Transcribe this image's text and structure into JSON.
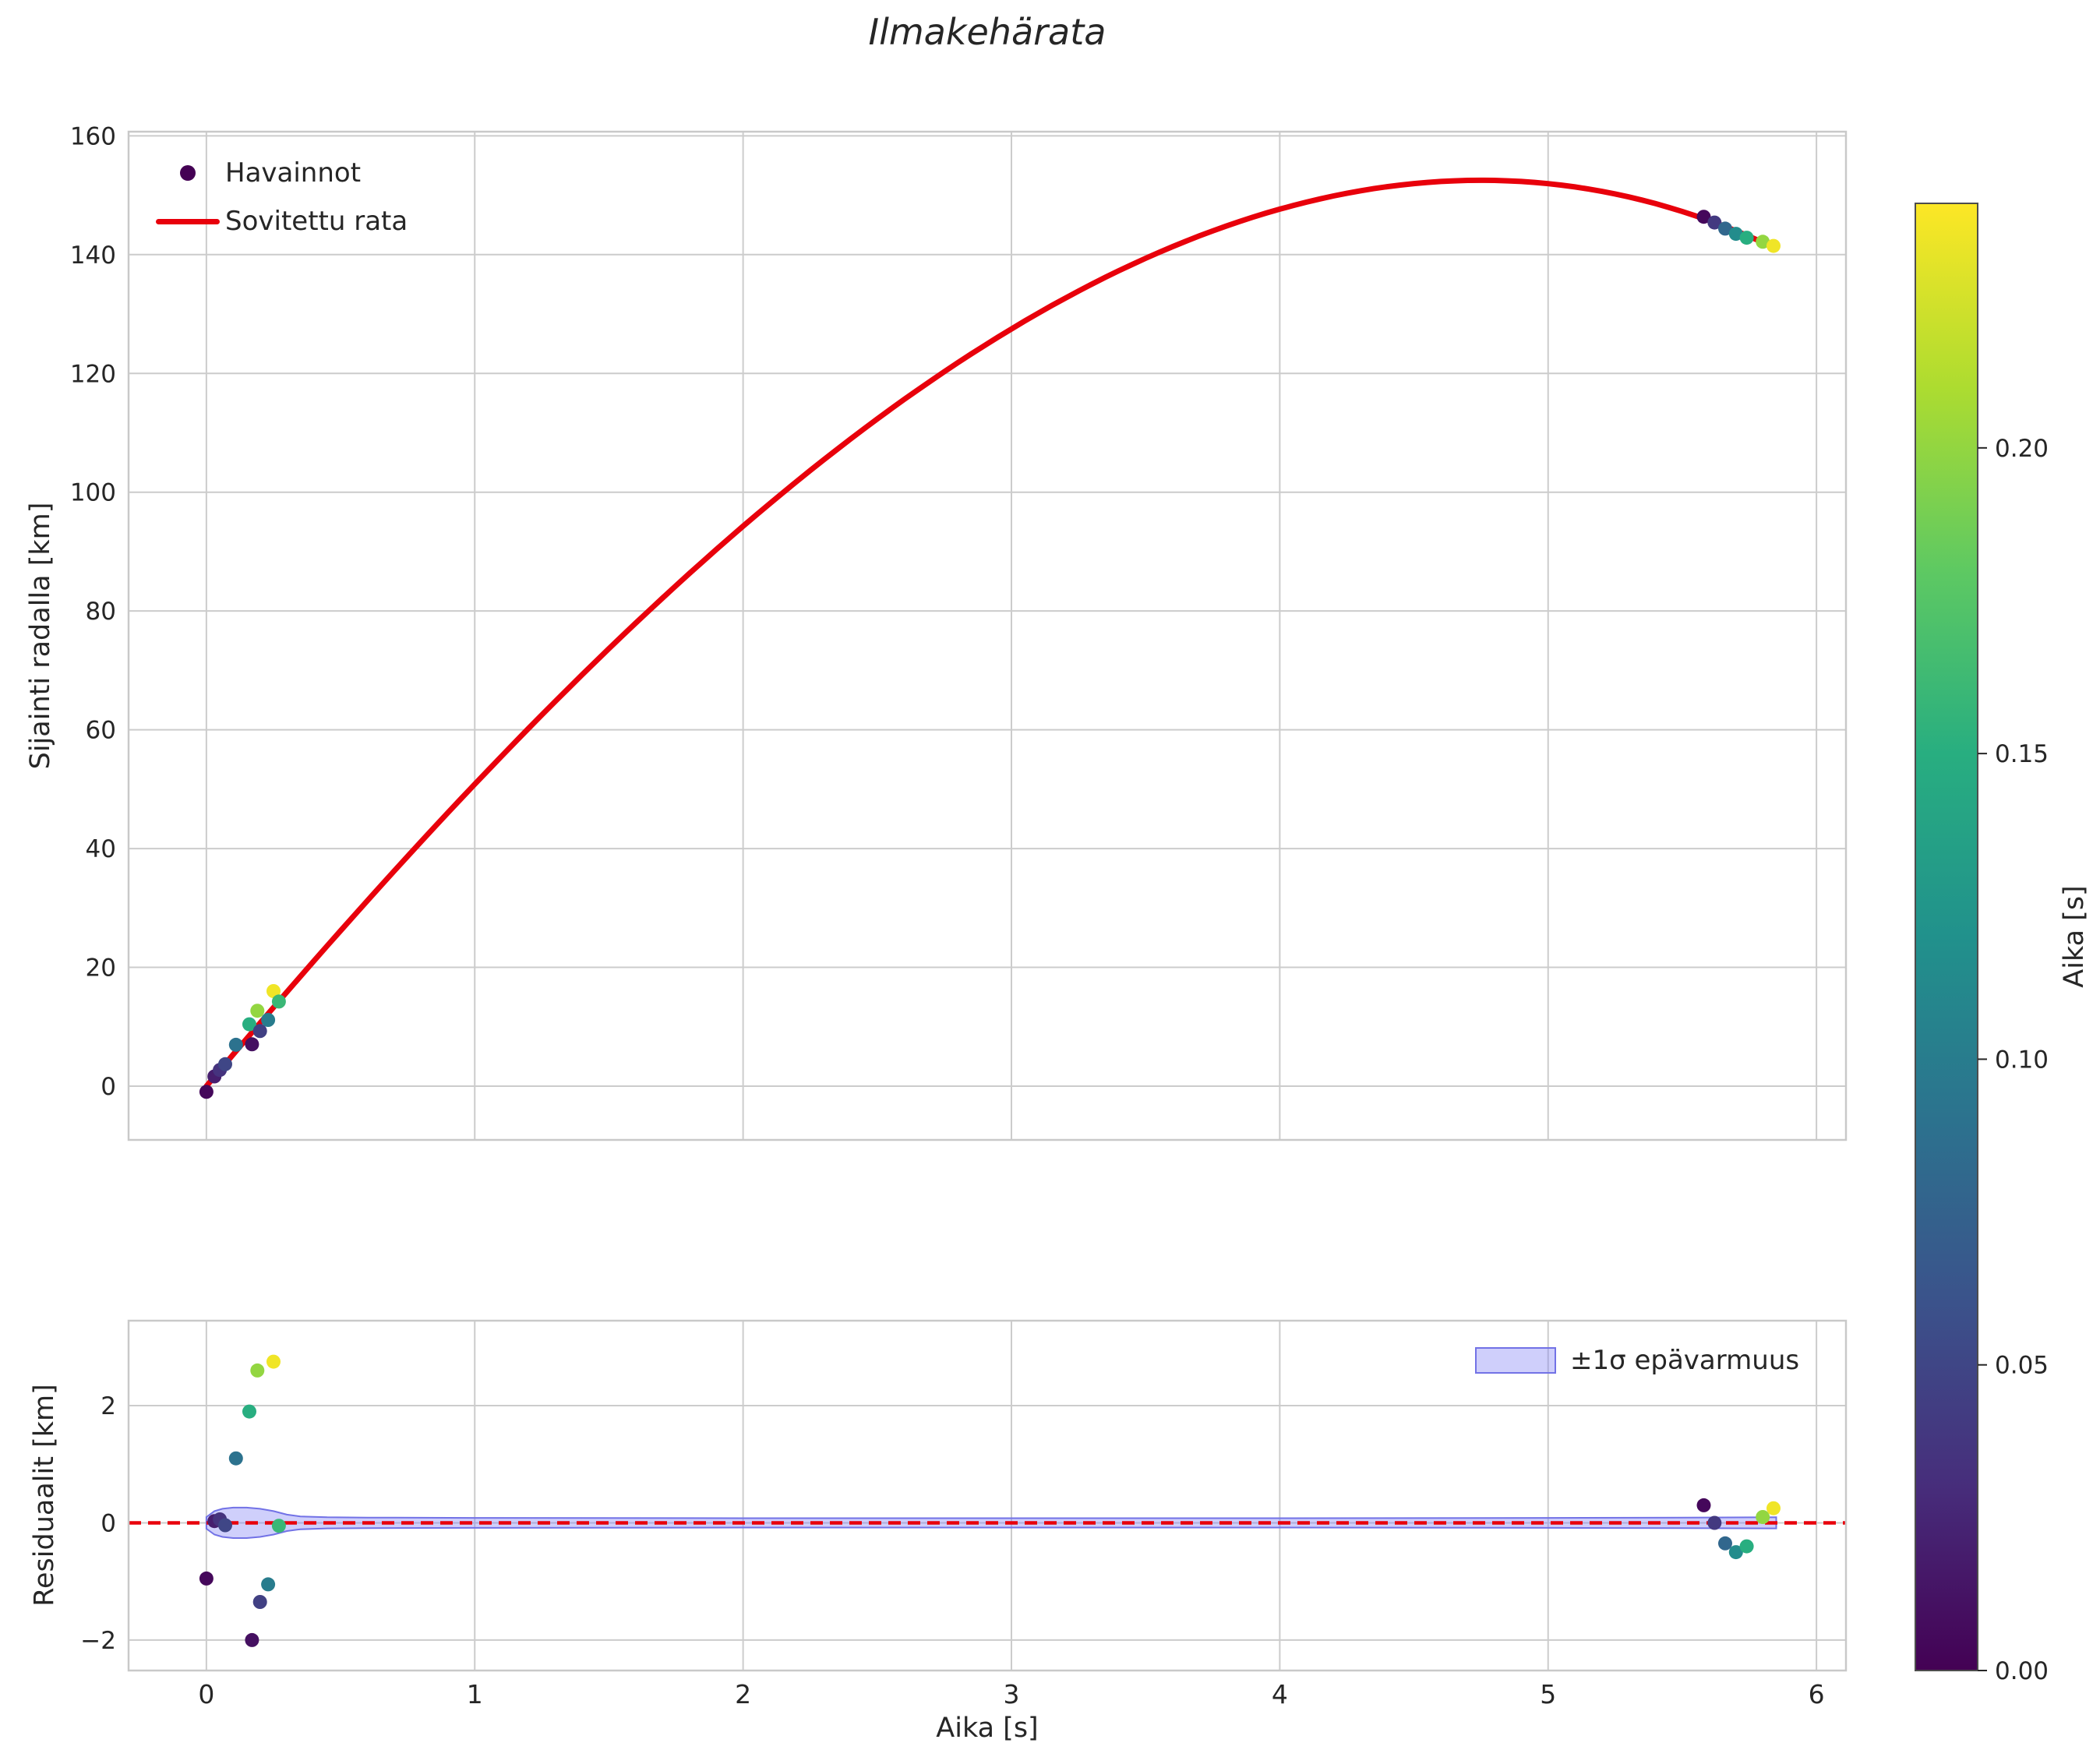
{
  "palette": {
    "curve_red": "#e8000b",
    "grid": "#cccccc",
    "spine": "#c9c9c9",
    "text": "#262626",
    "band_fill": "rgba(130,130,245,0.38)",
    "band_edge": "#7272e6",
    "legend_dot": "#440154",
    "colorbar_outline": "#4d4d4d",
    "viridis": [
      "#440154",
      "#472d7b",
      "#3b528b",
      "#2c728e",
      "#21918c",
      "#28ae80",
      "#5ec962",
      "#addc30",
      "#fde725"
    ]
  },
  "chart_data": {
    "type": "scatter",
    "title": "Ilmakehärata",
    "top": {
      "ylabel": "Sijainti radalla [km]",
      "xlim": [
        -0.29,
        6.11
      ],
      "ylim": [
        -9.05,
        160.7
      ],
      "xticks": [
        0,
        1,
        2,
        3,
        4,
        5,
        6
      ],
      "yticks": [
        0,
        20,
        40,
        60,
        80,
        100,
        120,
        140,
        160
      ],
      "ytick_labels": [
        "0",
        "20",
        "40",
        "60",
        "80",
        "100",
        "120",
        "140",
        "160"
      ],
      "legend": [
        {
          "label": "Havainnot",
          "marker": "dot"
        },
        {
          "label": "Sovitettu rata",
          "marker": "line"
        }
      ],
      "curve": {
        "name": "Sovitettu rata",
        "coeffs": [
          0,
          53.6,
          -2.29,
          -0.4704
        ],
        "t_min": 0,
        "t_max": 5.85,
        "peak": [
          4.75,
          152.5
        ]
      }
    },
    "residual": {
      "ylabel": "Residuaalit [km]",
      "xlabel": "Aika [s]",
      "xlim": [
        -0.29,
        6.11
      ],
      "ylim": [
        -2.52,
        3.45
      ],
      "xticks": [
        0,
        1,
        2,
        3,
        4,
        5,
        6
      ],
      "xtick_labels": [
        "0",
        "1",
        "2",
        "3",
        "4",
        "5",
        "6"
      ],
      "yticks": [
        -2,
        0,
        2
      ],
      "ytick_labels": [
        "−2",
        "0",
        "2"
      ],
      "zero_line": 0,
      "band": {
        "label": "±1σ epävarmuus",
        "t": [
          0.0,
          0.03,
          0.06,
          0.1,
          0.15,
          0.2,
          0.25,
          0.3,
          0.35,
          0.45,
          0.6,
          1.0,
          2.0,
          3.0,
          4.0,
          5.0,
          5.5,
          5.85
        ],
        "hw": [
          0.1,
          0.2,
          0.24,
          0.26,
          0.26,
          0.24,
          0.2,
          0.14,
          0.11,
          0.095,
          0.09,
          0.085,
          0.08,
          0.08,
          0.08,
          0.085,
          0.09,
          0.095
        ]
      }
    },
    "colorbar": {
      "label": "Aika [s]",
      "vmin": 0.0,
      "vmax": 0.24,
      "ticks": [
        0.0,
        0.05,
        0.1,
        0.15,
        0.2
      ],
      "tick_labels": [
        "0.00",
        "0.05",
        "0.10",
        "0.15",
        "0.20"
      ]
    },
    "points": [
      {
        "t": 0.0,
        "s": -0.95,
        "r": -0.95,
        "c": 0.005
      },
      {
        "t": 0.03,
        "s": 1.64,
        "r": 0.03,
        "c": 0.02
      },
      {
        "t": 0.05,
        "s": 2.73,
        "r": 0.06,
        "c": 0.035
      },
      {
        "t": 0.07,
        "s": 3.7,
        "r": -0.04,
        "c": 0.05
      },
      {
        "t": 0.11,
        "s": 6.97,
        "r": 1.1,
        "c": 0.09
      },
      {
        "t": 0.16,
        "s": 10.42,
        "r": 1.9,
        "c": 0.15
      },
      {
        "t": 0.17,
        "s": 7.04,
        "r": -2.0,
        "c": 0.01
      },
      {
        "t": 0.19,
        "s": 12.7,
        "r": 2.6,
        "c": 0.2
      },
      {
        "t": 0.2,
        "s": 9.28,
        "r": -1.35,
        "c": 0.045
      },
      {
        "t": 0.23,
        "s": 11.15,
        "r": -1.05,
        "c": 0.1
      },
      {
        "t": 0.25,
        "s": 16.0,
        "r": 2.75,
        "c": 0.235
      },
      {
        "t": 0.27,
        "s": 14.25,
        "r": -0.05,
        "c": 0.16
      },
      {
        "t": 5.58,
        "s": 146.37,
        "r": 0.3,
        "c": 0.005
      },
      {
        "t": 5.62,
        "s": 145.4,
        "r": 0.0,
        "c": 0.04
      },
      {
        "t": 5.66,
        "s": 144.38,
        "r": -0.35,
        "c": 0.08
      },
      {
        "t": 5.7,
        "s": 143.5,
        "r": -0.5,
        "c": 0.115
      },
      {
        "t": 5.74,
        "s": 142.84,
        "r": -0.4,
        "c": 0.15
      },
      {
        "t": 5.8,
        "s": 142.16,
        "r": 0.1,
        "c": 0.2
      },
      {
        "t": 5.84,
        "s": 141.47,
        "r": 0.25,
        "c": 0.235
      }
    ]
  }
}
